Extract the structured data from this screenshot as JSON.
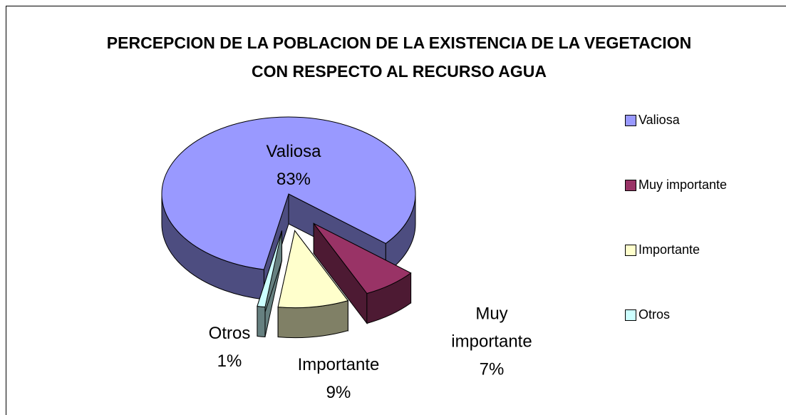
{
  "chart_data": {
    "type": "pie",
    "title": "PERCEPCION DE LA POBLACION DE LA EXISTENCIA DE LA VEGETACION CON RESPECTO AL RECURSO AGUA",
    "categories": [
      "Valiosa",
      "Muy importante",
      "Importante",
      "Otros"
    ],
    "values": [
      83,
      7,
      9,
      1
    ],
    "value_labels": [
      "83%",
      "7%",
      "9%",
      "1%"
    ],
    "colors": [
      "#9999ff",
      "#993366",
      "#ffffcc",
      "#ccffff"
    ],
    "legend": "right"
  }
}
